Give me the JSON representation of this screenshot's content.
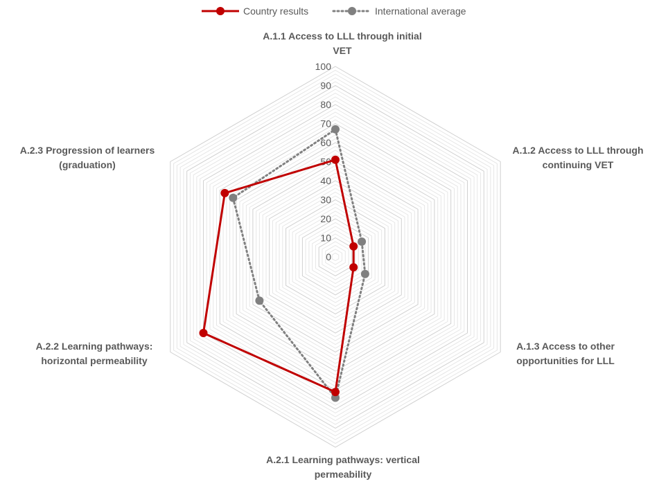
{
  "chart_data": {
    "type": "radar",
    "title": "",
    "categories": [
      [
        "A.1.1 Access to LLL through initial",
        "VET"
      ],
      [
        "A.1.2 Access to LLL through",
        "continuing VET"
      ],
      [
        "A.1.3 Access to other",
        "opportunities for LLL"
      ],
      [
        "A.2.1 Learning pathways: vertical",
        "permeability"
      ],
      [
        "A.2.2 Learning pathways:",
        "horizontal permeability"
      ],
      [
        "A.2.3 Progression of learners",
        "(graduation)"
      ]
    ],
    "r_range": [
      0,
      100
    ],
    "r_ticks": [
      "0",
      "10",
      "20",
      "30",
      "40",
      "50",
      "60",
      "70",
      "80",
      "90",
      "100"
    ],
    "grid": true,
    "legend_position": "top",
    "series": [
      {
        "name": "Country results",
        "values": [
          51,
          11,
          11,
          71,
          80,
          67
        ],
        "color": "#C00000",
        "line_style": "solid"
      },
      {
        "name": "International average",
        "values": [
          67,
          16,
          18,
          74,
          46,
          62
        ],
        "color": "#808080",
        "line_style": "dotted"
      }
    ]
  }
}
